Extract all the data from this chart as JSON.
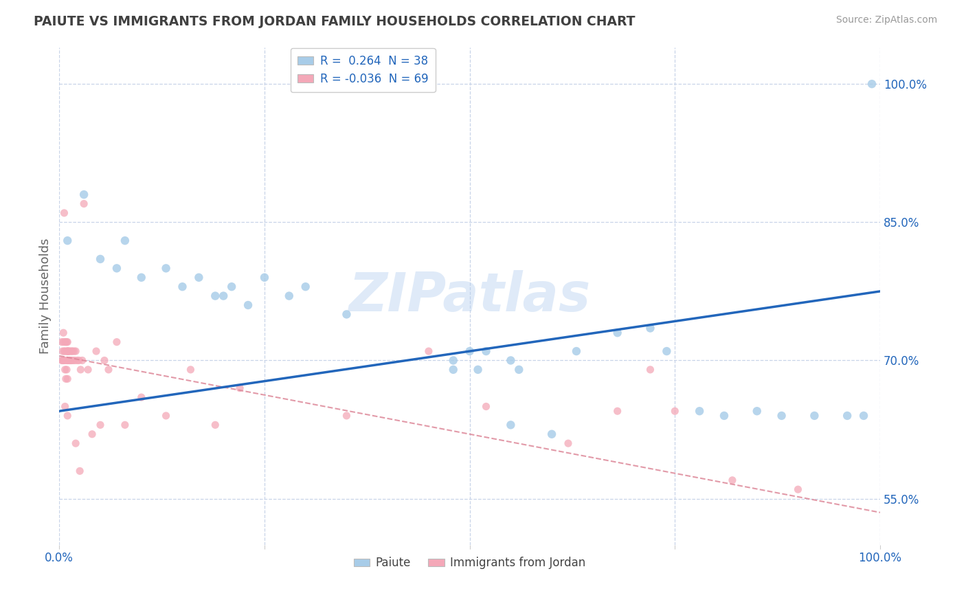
{
  "title": "PAIUTE VS IMMIGRANTS FROM JORDAN FAMILY HOUSEHOLDS CORRELATION CHART",
  "source": "Source: ZipAtlas.com",
  "ylabel": "Family Households",
  "legend_r1": "R =  0.264  N = 38",
  "legend_r2": "R = -0.036  N = 69",
  "legend_label1": "Paiute",
  "legend_label2": "Immigrants from Jordan",
  "watermark": "ZIPatlas",
  "blue_color": "#a8cce8",
  "pink_color": "#f4a8b8",
  "line_blue": "#2266bb",
  "line_pink": "#dd8899",
  "title_color": "#404040",
  "axis_label_color": "#2266bb",
  "background_color": "#ffffff",
  "grid_color": "#c8d4e8",
  "paiute_x": [
    0.01,
    0.03,
    0.05,
    0.07,
    0.08,
    0.1,
    0.13,
    0.15,
    0.17,
    0.19,
    0.2,
    0.21,
    0.23,
    0.25,
    0.28,
    0.3,
    0.35,
    0.48,
    0.51,
    0.52,
    0.55,
    0.56,
    0.63,
    0.68,
    0.72,
    0.74,
    0.78,
    0.81,
    0.85,
    0.88,
    0.92,
    0.96,
    0.98,
    0.99,
    0.48,
    0.5,
    0.55,
    0.6
  ],
  "paiute_y": [
    0.83,
    0.88,
    0.81,
    0.8,
    0.83,
    0.79,
    0.8,
    0.78,
    0.79,
    0.77,
    0.77,
    0.78,
    0.76,
    0.79,
    0.77,
    0.78,
    0.75,
    0.7,
    0.69,
    0.71,
    0.7,
    0.69,
    0.71,
    0.73,
    0.735,
    0.71,
    0.645,
    0.64,
    0.645,
    0.64,
    0.64,
    0.64,
    0.64,
    1.0,
    0.69,
    0.71,
    0.63,
    0.62
  ],
  "jordan_x": [
    0.003,
    0.003,
    0.004,
    0.004,
    0.005,
    0.005,
    0.005,
    0.006,
    0.006,
    0.007,
    0.007,
    0.007,
    0.008,
    0.008,
    0.009,
    0.009,
    0.009,
    0.01,
    0.01,
    0.01,
    0.01,
    0.01,
    0.01,
    0.011,
    0.012,
    0.012,
    0.013,
    0.013,
    0.014,
    0.015,
    0.015,
    0.016,
    0.017,
    0.018,
    0.019,
    0.02,
    0.022,
    0.024,
    0.026,
    0.028,
    0.03,
    0.035,
    0.04,
    0.045,
    0.05,
    0.055,
    0.06,
    0.07,
    0.08,
    0.1,
    0.13,
    0.16,
    0.19,
    0.22,
    0.35,
    0.45,
    0.52,
    0.62,
    0.68,
    0.72,
    0.75,
    0.82,
    0.9,
    0.006,
    0.007,
    0.008,
    0.01,
    0.02,
    0.025
  ],
  "jordan_y": [
    0.7,
    0.72,
    0.71,
    0.7,
    0.73,
    0.72,
    0.7,
    0.71,
    0.7,
    0.72,
    0.71,
    0.69,
    0.72,
    0.7,
    0.71,
    0.72,
    0.69,
    0.72,
    0.71,
    0.7,
    0.71,
    0.7,
    0.68,
    0.71,
    0.71,
    0.7,
    0.71,
    0.7,
    0.7,
    0.71,
    0.7,
    0.71,
    0.7,
    0.71,
    0.7,
    0.71,
    0.7,
    0.7,
    0.69,
    0.7,
    0.87,
    0.69,
    0.62,
    0.71,
    0.63,
    0.7,
    0.69,
    0.72,
    0.63,
    0.66,
    0.64,
    0.69,
    0.63,
    0.67,
    0.64,
    0.71,
    0.65,
    0.61,
    0.645,
    0.69,
    0.645,
    0.57,
    0.56,
    0.86,
    0.65,
    0.68,
    0.64,
    0.61,
    0.58
  ],
  "xlim": [
    0.0,
    1.0
  ],
  "ylim": [
    0.5,
    1.04
  ],
  "yticks_right": [
    0.55,
    0.7,
    0.85,
    1.0
  ],
  "xticks": [
    0.0,
    0.25,
    0.5,
    0.75,
    1.0
  ],
  "blue_line_x0": 0.0,
  "blue_line_y0": 0.645,
  "blue_line_x1": 1.0,
  "blue_line_y1": 0.775,
  "pink_line_x0": 0.0,
  "pink_line_y0": 0.705,
  "pink_line_x1": 1.0,
  "pink_line_y1": 0.535
}
